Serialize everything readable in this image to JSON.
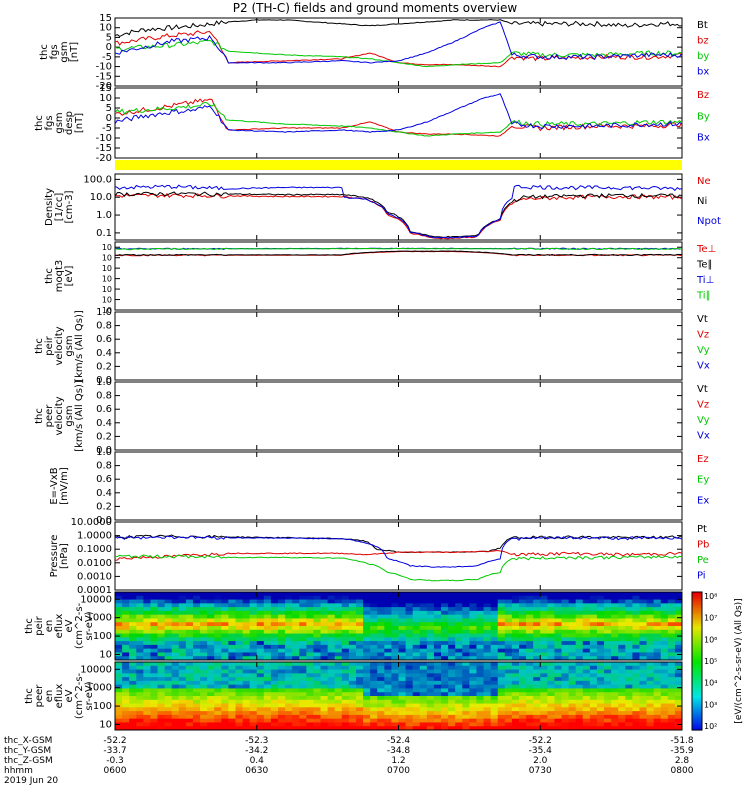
{
  "title": "P2 (TH-C) fields and ground moments overview",
  "colors": {
    "black": "#000000",
    "red": "#e00000",
    "green": "#00c800",
    "blue": "#0000e0",
    "yellow": "#ffff00"
  },
  "chart_data": [
    {
      "type": "line",
      "panel": "fgs",
      "ylabel": [
        "thc",
        "fgs",
        "gsm",
        "[nT]"
      ],
      "ylim": [
        -20,
        15
      ],
      "yticks": [
        "15",
        "10",
        "5",
        "0",
        "-5",
        "-10",
        "-15",
        "-20"
      ],
      "ytick_values": [
        15,
        10,
        5,
        0,
        -5,
        -10,
        -15,
        -20
      ],
      "legend": [
        "Bt",
        "bz",
        "by",
        "bx"
      ],
      "series": [
        {
          "name": "Bt",
          "color": "black",
          "x": [
            0,
            0.05,
            0.1,
            0.14,
            0.17,
            0.2,
            0.25,
            0.3,
            0.35,
            0.4,
            0.45,
            0.5,
            0.55,
            0.6,
            0.65,
            0.68,
            0.7,
            0.75,
            0.85,
            0.9,
            0.95,
            1
          ],
          "y": [
            6,
            9,
            10,
            11,
            12,
            13,
            14,
            14,
            13,
            12,
            11,
            12,
            13,
            14,
            14,
            14,
            12,
            12,
            12,
            11,
            12,
            12
          ]
        },
        {
          "name": "bz",
          "color": "red",
          "x": [
            0,
            0.05,
            0.1,
            0.14,
            0.17,
            0.2,
            0.3,
            0.4,
            0.45,
            0.5,
            0.55,
            0.6,
            0.68,
            0.7,
            0.75,
            0.85,
            0.95,
            1
          ],
          "y": [
            2,
            4,
            6,
            7,
            8,
            -8,
            -7,
            -6,
            -3,
            -8,
            -9,
            -9,
            -10,
            -5,
            -6,
            -5,
            -5,
            -4
          ]
        },
        {
          "name": "by",
          "color": "green",
          "x": [
            0,
            0.05,
            0.1,
            0.14,
            0.17,
            0.2,
            0.3,
            0.4,
            0.45,
            0.5,
            0.55,
            0.6,
            0.68,
            0.7,
            0.75,
            0.85,
            0.95,
            1
          ],
          "y": [
            -1,
            0,
            1,
            2,
            3,
            -2,
            -4,
            -5,
            -6,
            -8,
            -10,
            -9,
            -8,
            -3,
            -4,
            -4,
            -3,
            -3
          ]
        },
        {
          "name": "bx",
          "color": "blue",
          "x": [
            0,
            0.05,
            0.1,
            0.14,
            0.17,
            0.2,
            0.3,
            0.4,
            0.45,
            0.5,
            0.55,
            0.6,
            0.65,
            0.68,
            0.7,
            0.75,
            0.85,
            0.95,
            1
          ],
          "y": [
            -3,
            0,
            3,
            4,
            5,
            -8,
            -8,
            -7,
            -8,
            -7,
            -3,
            3,
            10,
            13,
            -4,
            -5,
            -5,
            -4,
            -4
          ]
        }
      ]
    },
    {
      "type": "line",
      "panel": "fgs_despun",
      "ylabel": [
        "thc",
        "fgs",
        "gsm",
        "desp",
        "[nT]"
      ],
      "ylim": [
        -20,
        15
      ],
      "yticks": [
        "15",
        "10",
        "5",
        "0",
        "-5",
        "-10",
        "-15",
        "-20"
      ],
      "ytick_values": [
        15,
        10,
        5,
        0,
        -5,
        -10,
        -15,
        -20
      ],
      "legend": [
        "Bz",
        "By",
        "Bx"
      ],
      "series": [
        {
          "name": "Bz",
          "color": "red",
          "x": [
            0,
            0.05,
            0.1,
            0.14,
            0.17,
            0.2,
            0.3,
            0.4,
            0.45,
            0.5,
            0.55,
            0.6,
            0.68,
            0.7,
            0.75,
            0.85,
            0.95,
            1
          ],
          "y": [
            2,
            4,
            6,
            8,
            9,
            -6,
            -5,
            -5,
            -2,
            -7,
            -8,
            -8,
            -9,
            -4,
            -5,
            -4,
            -4,
            -3
          ]
        },
        {
          "name": "By",
          "color": "green",
          "x": [
            0,
            0.05,
            0.1,
            0.14,
            0.17,
            0.2,
            0.3,
            0.4,
            0.45,
            0.5,
            0.55,
            0.6,
            0.68,
            0.7,
            0.75,
            0.85,
            0.95,
            1
          ],
          "y": [
            3,
            4,
            5,
            6,
            7,
            -1,
            -3,
            -4,
            -5,
            -7,
            -9,
            -8,
            -7,
            -2,
            -3,
            -3,
            -2,
            -2
          ]
        },
        {
          "name": "Bx",
          "color": "blue",
          "x": [
            0,
            0.05,
            0.1,
            0.14,
            0.17,
            0.2,
            0.3,
            0.4,
            0.45,
            0.5,
            0.55,
            0.6,
            0.65,
            0.68,
            0.7,
            0.75,
            0.85,
            0.95,
            1
          ],
          "y": [
            -2,
            1,
            3,
            4,
            6,
            -6,
            -7,
            -6,
            -7,
            -6,
            -2,
            4,
            10,
            12,
            -3,
            -4,
            -4,
            -3,
            -3
          ]
        }
      ]
    },
    {
      "type": "bar",
      "panel": "quality_flag",
      "color": "yellow",
      "ylabel": [],
      "legend": []
    },
    {
      "type": "line",
      "panel": "density",
      "yscale": "log",
      "ylabel": [
        "Density",
        "[1/cc]",
        "[cm-3]"
      ],
      "ylim": [
        0.04,
        200
      ],
      "yticks": [
        "100.0",
        "10.0",
        "1.0",
        "0.1"
      ],
      "ytick_values": [
        100,
        10,
        1,
        0.1
      ],
      "legend": [
        "Ne",
        "Ni",
        "Npot"
      ],
      "series": [
        {
          "name": "Ne",
          "color": "red",
          "x": [
            0,
            0.1,
            0.2,
            0.3,
            0.4,
            0.44,
            0.48,
            0.52,
            0.56,
            0.6,
            0.64,
            0.68,
            0.72,
            0.8,
            0.9,
            1
          ],
          "y": [
            12,
            13,
            12,
            11,
            11,
            8,
            1,
            0.1,
            0.05,
            0.05,
            0.06,
            0.5,
            8,
            10,
            11,
            10
          ]
        },
        {
          "name": "Ni",
          "color": "black",
          "x": [
            0,
            0.1,
            0.2,
            0.3,
            0.4,
            0.44,
            0.48,
            0.52,
            0.56,
            0.6,
            0.64,
            0.68,
            0.72,
            0.8,
            0.9,
            1
          ],
          "y": [
            15,
            16,
            15,
            14,
            14,
            10,
            1.5,
            0.12,
            0.06,
            0.06,
            0.07,
            0.6,
            10,
            12,
            13,
            12
          ]
        },
        {
          "name": "Npot",
          "color": "blue",
          "x": [
            0,
            0.1,
            0.2,
            0.3,
            0.4,
            0.401,
            0.44,
            0.48,
            0.52,
            0.56,
            0.6,
            0.64,
            0.68,
            0.7,
            0.701,
            0.8,
            0.9,
            1
          ],
          "y": [
            35,
            40,
            30,
            35,
            35,
            10,
            8,
            1.2,
            0.11,
            0.055,
            0.055,
            0.065,
            0.55,
            9,
            40,
            35,
            35,
            30
          ]
        }
      ]
    },
    {
      "type": "line",
      "panel": "temperature",
      "yscale": "log",
      "ylabel": [
        "thc",
        "moqt3",
        "[eV]"
      ],
      "ylim": [
        1e-08,
        100000
      ],
      "yticks": [
        "10",
        "10",
        "10",
        "10",
        "10",
        "10",
        "10"
      ],
      "ytick_values": [
        10000,
        100,
        1,
        0.01,
        0.0001,
        1e-06,
        1e-08
      ],
      "legend": [
        "Te⊥",
        "Te∥",
        "Ti⊥",
        "Ti∥"
      ],
      "series": [
        {
          "name": "Te⊥",
          "color": "red",
          "x": [
            0,
            0.4,
            0.5,
            0.6,
            0.7,
            1
          ],
          "y": [
            300,
            300,
            1500,
            1500,
            300,
            300
          ]
        },
        {
          "name": "Te∥",
          "color": "black",
          "x": [
            0,
            0.4,
            0.5,
            0.6,
            0.7,
            1
          ],
          "y": [
            350,
            350,
            1800,
            1800,
            350,
            350
          ]
        },
        {
          "name": "Ti⊥",
          "color": "blue",
          "x": [
            0,
            0.5,
            1
          ],
          "y": [
            5000,
            6000,
            5000
          ]
        },
        {
          "name": "Ti∥",
          "color": "green",
          "x": [
            0,
            0.5,
            1
          ],
          "y": [
            4500,
            5500,
            4500
          ]
        }
      ]
    },
    {
      "type": "line",
      "panel": "peir_velocity",
      "ylabel": [
        "thc",
        "peir",
        "velocity",
        "gsm",
        "[km/s (All Qs)]"
      ],
      "ylim": [
        0,
        1
      ],
      "yticks": [
        "1.0",
        "0.8",
        "0.6",
        "0.4",
        "0.2",
        "0.0"
      ],
      "ytick_values": [
        1,
        0.8,
        0.6,
        0.4,
        0.2,
        0
      ],
      "legend": [
        "Vt",
        "Vz",
        "Vy",
        "Vx"
      ],
      "series": []
    },
    {
      "type": "line",
      "panel": "peer_velocity",
      "ylabel": [
        "thc",
        "peer",
        "velocity",
        "gsm",
        "[km/s (All Qs)]"
      ],
      "ylim": [
        0,
        1
      ],
      "yticks": [
        "1.0",
        "0.8",
        "0.6",
        "0.4",
        "0.2",
        "0.0"
      ],
      "ytick_values": [
        1,
        0.8,
        0.6,
        0.4,
        0.2,
        0
      ],
      "legend": [
        "Vt",
        "Vz",
        "Vy",
        "Vx"
      ],
      "series": []
    },
    {
      "type": "line",
      "panel": "efield",
      "ylabel": [
        "E=-VxB",
        "[mV/m]"
      ],
      "ylim": [
        0,
        1
      ],
      "yticks": [
        "1.0",
        "0.8",
        "0.6",
        "0.4",
        "0.2",
        "0.0"
      ],
      "ytick_values": [
        1,
        0.8,
        0.6,
        0.4,
        0.2,
        0
      ],
      "legend": [
        "Ez",
        "Ey",
        "Ex"
      ],
      "series": []
    },
    {
      "type": "line",
      "panel": "pressure",
      "yscale": "log",
      "ylabel": [
        "Pressure",
        "[nPa]"
      ],
      "ylim": [
        0.0001,
        10
      ],
      "yticks": [
        "10.0000",
        "1.0000",
        "0.1000",
        "0.0100",
        "0.0010",
        "0.0001"
      ],
      "ytick_values": [
        10,
        1,
        0.1,
        0.01,
        0.001,
        0.0001
      ],
      "legend": [
        "Pt",
        "Pb",
        "Pe",
        "Pi"
      ],
      "series": [
        {
          "name": "Pt",
          "color": "black",
          "x": [
            0,
            0.1,
            0.2,
            0.3,
            0.4,
            0.44,
            0.46,
            0.5,
            0.6,
            0.66,
            0.68,
            0.7,
            0.8,
            0.9,
            1
          ],
          "y": [
            0.8,
            0.9,
            0.8,
            0.7,
            0.6,
            0.4,
            0.1,
            0.06,
            0.06,
            0.07,
            0.12,
            0.7,
            0.8,
            0.7,
            0.8
          ]
        },
        {
          "name": "Pb",
          "color": "red",
          "x": [
            0,
            0.1,
            0.2,
            0.3,
            0.4,
            0.44,
            0.48,
            0.5,
            0.6,
            0.66,
            0.68,
            0.7,
            0.8,
            0.9,
            1
          ],
          "y": [
            0.02,
            0.03,
            0.05,
            0.05,
            0.05,
            0.04,
            0.05,
            0.06,
            0.06,
            0.07,
            0.08,
            0.04,
            0.05,
            0.04,
            0.05
          ]
        },
        {
          "name": "Pe",
          "color": "green",
          "x": [
            0,
            0.1,
            0.2,
            0.3,
            0.4,
            0.44,
            0.48,
            0.52,
            0.56,
            0.6,
            0.64,
            0.68,
            0.7,
            0.8,
            0.9,
            1
          ],
          "y": [
            0.03,
            0.03,
            0.025,
            0.025,
            0.022,
            0.01,
            0.002,
            0.0006,
            0.0005,
            0.0005,
            0.0006,
            0.002,
            0.02,
            0.025,
            0.025,
            0.03
          ]
        },
        {
          "name": "Pi",
          "color": "blue",
          "x": [
            0,
            0.1,
            0.2,
            0.3,
            0.4,
            0.44,
            0.48,
            0.52,
            0.56,
            0.6,
            0.64,
            0.68,
            0.7,
            0.8,
            0.9,
            1
          ],
          "y": [
            0.7,
            0.8,
            0.7,
            0.65,
            0.6,
            0.3,
            0.02,
            0.006,
            0.005,
            0.005,
            0.006,
            0.02,
            0.6,
            0.7,
            0.65,
            0.7
          ]
        }
      ]
    },
    {
      "type": "heatmap",
      "panel": "peir_eflux",
      "yscale": "log",
      "ylabel": [
        "thc",
        "peir",
        "en",
        "eflux",
        "eV",
        "(cm^2-s-",
        "sr-eV)"
      ],
      "ylim": [
        5,
        25000
      ],
      "yticks": [
        "10000",
        "1000",
        "100",
        "10"
      ],
      "ytick_values": [
        10000,
        1000,
        100,
        10
      ],
      "legend": [],
      "description_profile": "ion spectrogram with red band near 300-1000 eV outside 0.42-0.68; green/blue within the interval"
    },
    {
      "type": "heatmap",
      "panel": "peer_eflux",
      "yscale": "log",
      "ylabel": [
        "thc",
        "peer",
        "en",
        "eflux",
        "eV",
        "(cm^2-s-",
        "sr-eV)"
      ],
      "ylim": [
        5,
        25000
      ],
      "yticks": [
        "10000",
        "1000",
        "100",
        "10"
      ],
      "ytick_values": [
        10000,
        1000,
        100,
        10
      ],
      "legend": []
    }
  ],
  "colorbar": {
    "ticks": [
      "10⁸",
      "10⁷",
      "10⁶",
      "10⁵",
      "10⁴",
      "10³",
      "10²"
    ],
    "label": "[eV/(cm^2-s-sr-eV) (All Qs)]"
  },
  "xaxis": {
    "ticks": [
      "0600",
      "0630",
      "0700",
      "0730",
      "0800"
    ],
    "tick_positions": [
      0,
      0.25,
      0.5,
      0.75,
      1
    ],
    "rows": [
      {
        "label": "thc_X-GSM",
        "values": [
          "-52.2",
          "-52.3",
          "-52.4",
          "-52.2",
          "-51.8"
        ]
      },
      {
        "label": "thc_Y-GSM",
        "values": [
          "-33.7",
          "-34.2",
          "-34.8",
          "-35.4",
          "-35.9"
        ]
      },
      {
        "label": "thc_Z-GSM",
        "values": [
          "-0.3",
          "0.4",
          "1.2",
          "2.0",
          "2.8"
        ]
      },
      {
        "label": "hhmm",
        "values": [
          "0600",
          "0630",
          "0700",
          "0730",
          "0800"
        ]
      }
    ],
    "date": "2019 Jun 20"
  }
}
